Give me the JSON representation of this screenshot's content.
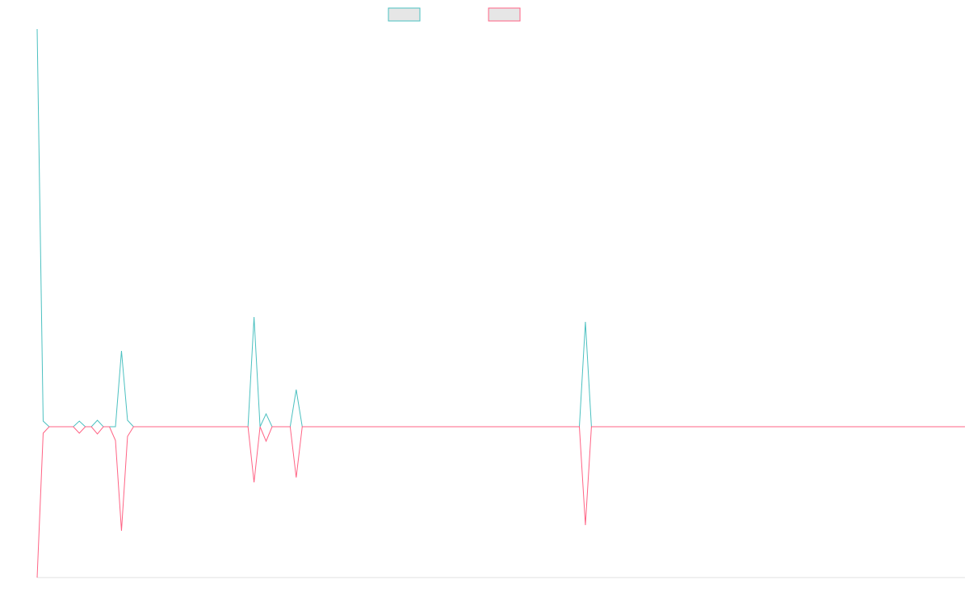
{
  "chart_data": {
    "type": "line",
    "ylim": [
      -1.87,
      4.93
    ],
    "series": [
      {
        "color": "#4bc0c0",
        "values": [
          4.93,
          0.07,
          0,
          0,
          0,
          0,
          0,
          0.07,
          0,
          0,
          0.08,
          0,
          0,
          0,
          0.94,
          0.08,
          0,
          0,
          0,
          0,
          0,
          0,
          0,
          0,
          0,
          0,
          0,
          0,
          0,
          0,
          0,
          0,
          0,
          0,
          0,
          0,
          1.36,
          0,
          0.16,
          0,
          0,
          0,
          0,
          0.46,
          0,
          0,
          0,
          0,
          0,
          0,
          0,
          0,
          0,
          0,
          0,
          0,
          0,
          0,
          0,
          0,
          0,
          0,
          0,
          0,
          0,
          0,
          0,
          0,
          0,
          0,
          0,
          0,
          0,
          0,
          0,
          0,
          0,
          0,
          0,
          0,
          0,
          0,
          0,
          0,
          0,
          0,
          0,
          0,
          0,
          0,
          0,
          1.3,
          0,
          0,
          0,
          0,
          0,
          0,
          0,
          0,
          0,
          0,
          0,
          0,
          0,
          0,
          0,
          0,
          0,
          0,
          0,
          0,
          0,
          0,
          0,
          0,
          0,
          0,
          0,
          0,
          0,
          0,
          0,
          0,
          0,
          0,
          0,
          0,
          0,
          0,
          0,
          0,
          0,
          0,
          0,
          0,
          0,
          0,
          0,
          0,
          0,
          0,
          0,
          0,
          0,
          0,
          0,
          0,
          0,
          0,
          0,
          0,
          0,
          0,
          0
        ]
      },
      {
        "color": "#ff6384",
        "values": [
          -1.87,
          -0.08,
          0,
          0,
          0,
          0,
          0,
          -0.08,
          0,
          0,
          -0.09,
          0,
          0,
          -0.17,
          -1.29,
          -0.12,
          0,
          0,
          0,
          0,
          0,
          0,
          0,
          0,
          0,
          0,
          0,
          0,
          0,
          0,
          0,
          0,
          0,
          0,
          0,
          0,
          -0.69,
          0,
          -0.18,
          0,
          0,
          0,
          0,
          -0.63,
          0,
          0,
          0,
          0,
          0,
          0,
          0,
          0,
          0,
          0,
          0,
          0,
          0,
          0,
          0,
          0,
          0,
          0,
          0,
          0,
          0,
          0,
          0,
          0,
          0,
          0,
          0,
          0,
          0,
          0,
          0,
          0,
          0,
          0,
          0,
          0,
          0,
          0,
          0,
          0,
          0,
          0,
          0,
          0,
          0,
          0,
          0,
          -1.22,
          0,
          0,
          0,
          0,
          0,
          0,
          0,
          0,
          0,
          0,
          0,
          0,
          0,
          0,
          0,
          0,
          0,
          0,
          0,
          0,
          0,
          0,
          0,
          0,
          0,
          0,
          0,
          0,
          0,
          0,
          0,
          0,
          0,
          0,
          0,
          0,
          0,
          0,
          0,
          0,
          0,
          0,
          0,
          0,
          0,
          0,
          0,
          0,
          0,
          0,
          0,
          0,
          0,
          0,
          0,
          0,
          0,
          0,
          0,
          0,
          0,
          0,
          0
        ]
      }
    ]
  }
}
